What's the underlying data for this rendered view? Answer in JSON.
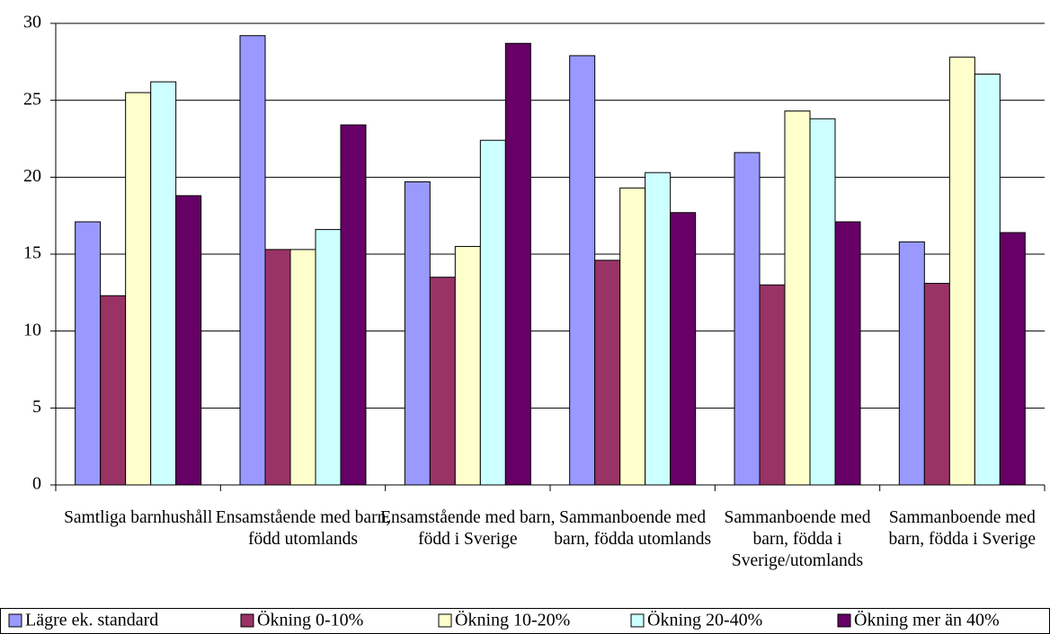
{
  "chart_data": {
    "type": "bar",
    "categories": [
      "Samtliga barnhushåll",
      "Ensamstående med barn, född utomlands",
      "Ensamstående med barn, född i Sverige",
      "Sammanboende med barn, födda utomlands",
      "Sammanboende med barn, födda i Sverige/utomlands",
      "Sammanboende med barn, födda i Sverige"
    ],
    "series": [
      {
        "name": "Lägre ek. standard",
        "color": "#9999ff",
        "values": [
          17.1,
          29.2,
          19.7,
          27.9,
          21.6,
          15.8
        ]
      },
      {
        "name": "Ökning 0-10%",
        "color": "#993366",
        "values": [
          12.3,
          15.3,
          13.5,
          14.6,
          13.0,
          13.1
        ]
      },
      {
        "name": "Ökning 10-20%",
        "color": "#ffffcc",
        "values": [
          25.5,
          15.3,
          15.5,
          19.3,
          24.3,
          27.8
        ]
      },
      {
        "name": "Ökning 20-40%",
        "color": "#ccffff",
        "values": [
          26.2,
          16.6,
          22.4,
          20.3,
          23.8,
          26.7
        ]
      },
      {
        "name": "Ökning mer än 40%",
        "color": "#660066",
        "values": [
          18.8,
          23.4,
          28.7,
          17.7,
          17.1,
          16.4
        ]
      }
    ],
    "ylim": [
      0,
      30
    ],
    "yticks": [
      0,
      5,
      10,
      15,
      20,
      25,
      30
    ],
    "grid": true,
    "legend": "bottom"
  }
}
